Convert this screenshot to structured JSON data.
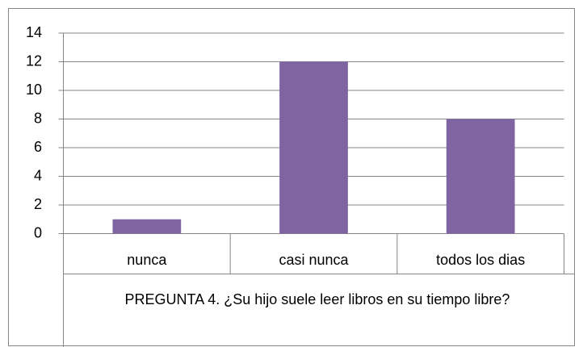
{
  "chart_data": {
    "type": "bar",
    "xlabel": "PREGUNTA 4. ¿Su hijo suele leer libros en su tiempo libre?",
    "categories": [
      "nunca",
      "casi nunca",
      "todos los dias"
    ],
    "values": [
      1,
      12,
      8
    ],
    "color": "#8064a2",
    "ylim": [
      0,
      14
    ],
    "yticks": [
      0,
      2,
      4,
      6,
      8,
      10,
      12,
      14
    ],
    "grid": true
  }
}
